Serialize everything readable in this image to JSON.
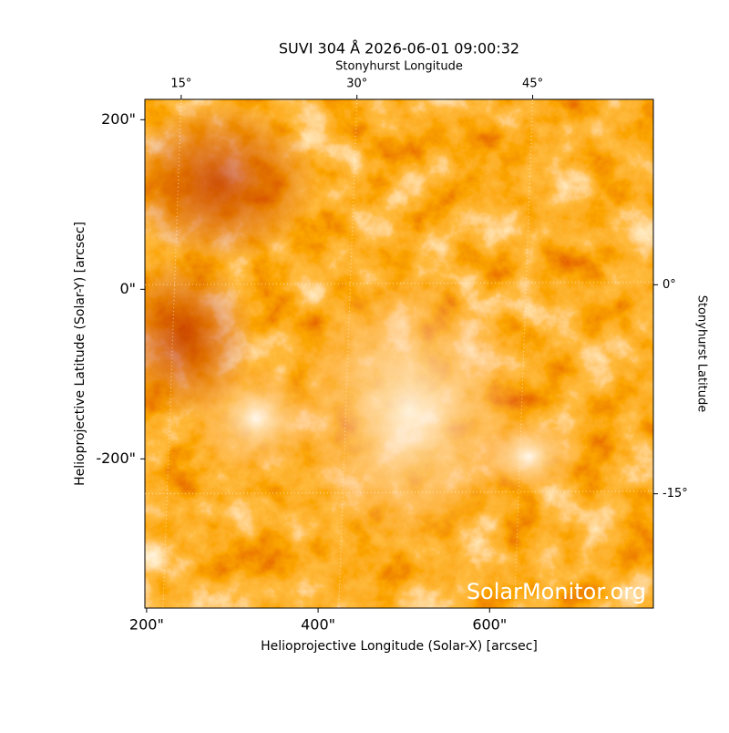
{
  "chart_data": {
    "type": "image",
    "title": "SUVI 304 Å 2026-06-01 09:00:32",
    "xlabel": "Helioprojective Longitude (Solar-X) [arcsec]",
    "ylabel": "Helioprojective Latitude (Solar-Y) [arcsec]",
    "x2label": "Stonyhurst Longitude",
    "y2label": "Stonyhurst Latitude",
    "annotation": "SolarMonitor.org",
    "xlim": [
      198,
      791
    ],
    "ylim": [
      -376,
      224
    ],
    "xticks": [
      {
        "value": 200,
        "label": "200\""
      },
      {
        "value": 400,
        "label": "400\""
      },
      {
        "value": 600,
        "label": "600\""
      }
    ],
    "yticks": [
      {
        "value": -200,
        "label": "-200\""
      },
      {
        "value": 0,
        "label": "0\""
      },
      {
        "value": 200,
        "label": "200\""
      }
    ],
    "x2lim": [
      11.9,
      55.3
    ],
    "x2ticks": [
      {
        "value": 15,
        "label": "15°"
      },
      {
        "value": 30,
        "label": "30°"
      },
      {
        "value": 45,
        "label": "45°"
      }
    ],
    "y2lim": [
      -23.2,
      13.3
    ],
    "y2ticks": [
      {
        "value": -15,
        "label": "-15°"
      },
      {
        "value": 0,
        "label": "0°"
      }
    ],
    "grid": true
  }
}
